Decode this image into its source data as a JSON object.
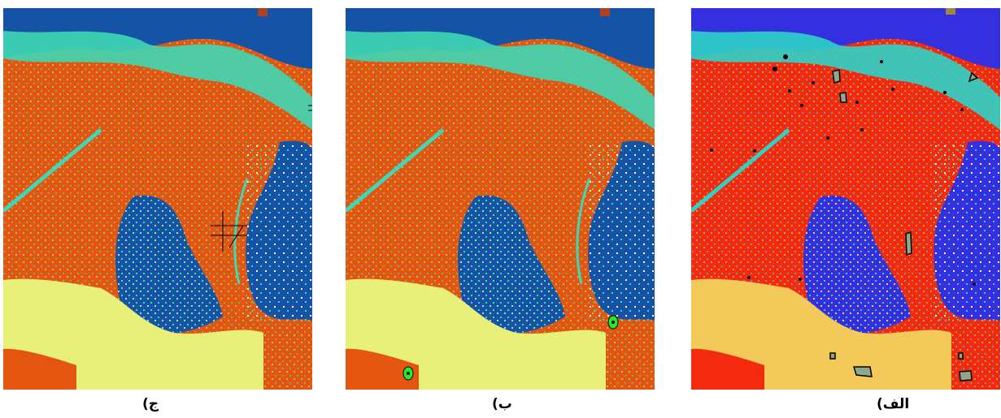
{
  "captions": {
    "panel_c": "ج)",
    "panel_b": "ب)",
    "panel_a": "الف)"
  },
  "palettes": {
    "panel_c": {
      "dominant": "#e4560f",
      "water": "#1553a6",
      "vegetation": "#3fd7b4",
      "bright": "#e8f07a"
    },
    "panel_b": {
      "dominant": "#e4560f",
      "water": "#1553a6",
      "vegetation": "#3fd7b4",
      "bright": "#e8f07a"
    },
    "panel_a": {
      "dominant": "#f42a10",
      "water": "#3430e0",
      "vegetation": "#2ed3c6",
      "bright": "#f3c95a"
    }
  },
  "markers": {
    "panel_c": "crosshair-lines",
    "panel_b": "green-circle-markers",
    "panel_a": "gray-polygon-markers"
  }
}
